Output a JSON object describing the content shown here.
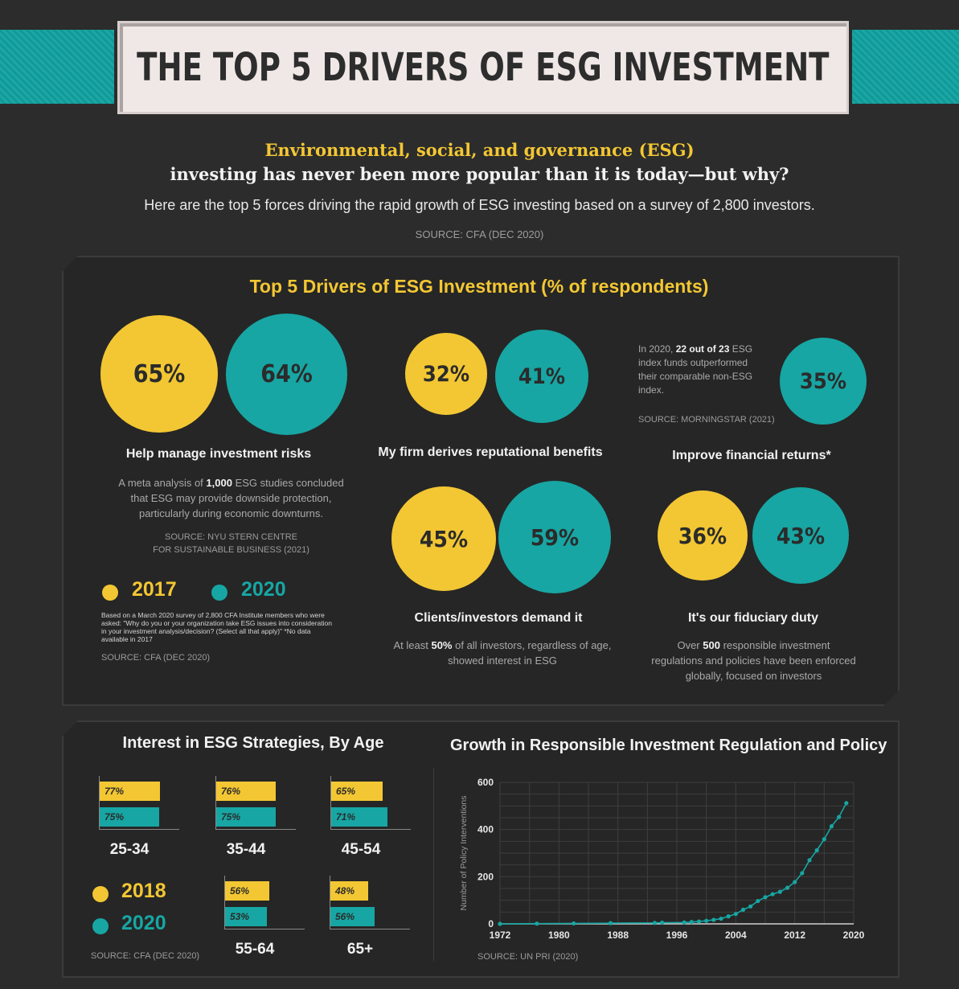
{
  "header": {
    "title": "THE TOP 5 DRIVERS OF ESG INVESTMENT",
    "intro_line1": "Environmental, social, and governance (ESG)",
    "intro_line2": "investing has never been more popular than it is today—but why?",
    "intro_line3": "Here are the top 5 forces driving the rapid growth of ESG investing based on a survey of 2,800 investors.",
    "source": "SOURCE: CFA (DEC 2020)"
  },
  "drivers": {
    "title": "Top 5 Drivers of ESG Investment (% of respondents)",
    "items": [
      {
        "label": "Help manage investment risks",
        "v2017": "65%",
        "v2020": "64%",
        "desc_pre": "A meta analysis of ",
        "desc_bold": "1,000",
        "desc_post": " ESG studies concluded that ESG may provide downside protection, particularly during economic downturns.",
        "source_l1": "SOURCE: NYU STERN CENTRE",
        "source_l2": "FOR SUSTAINABLE BUSINESS (2021)"
      },
      {
        "label": "My firm derives reputational benefits",
        "v2017": "32%",
        "v2020": "41%"
      },
      {
        "label": "Improve financial returns*",
        "v2017": "",
        "v2020": "35%",
        "note_pre": "In 2020, ",
        "note_bold": "22 out of 23",
        "note_post": " ESG index funds outperformed their comparable non-ESG index.",
        "source": "SOURCE: MORNINGSTAR (2021)"
      },
      {
        "label": "Clients/investors demand it",
        "v2017": "45%",
        "v2020": "59%",
        "desc_pre": "At least ",
        "desc_bold": "50%",
        "desc_post": " of all investors, regardless of age, showed interest in ESG"
      },
      {
        "label": "It's our fiduciary duty",
        "v2017": "36%",
        "v2020": "43%",
        "desc_pre": "Over ",
        "desc_bold": "500",
        "desc_post": " responsible investment regulations and policies have been enforced globally, focused on investors"
      }
    ],
    "legend": {
      "y1": "2017",
      "y2": "2020"
    },
    "footnote": "Based on a March 2020 survey of 2,800 CFA Institute members who were asked: \"Why do you or your organization take ESG issues into consideration in your investment analysis/decision? (Select all that apply)\" *No data available in 2017",
    "source": "SOURCE: CFA (DEC 2020)",
    "colors": {
      "2017": "#f3c733",
      "2020": "#17a6a3"
    }
  },
  "age_chart": {
    "title": "Interest in ESG Strategies, By Age",
    "legend": {
      "y1": "2018",
      "y2": "2020"
    },
    "source": "SOURCE: CFA (DEC 2020)",
    "groups": [
      {
        "age": "25-34",
        "v2018": 77,
        "v2020": 75
      },
      {
        "age": "35-44",
        "v2018": 76,
        "v2020": 75
      },
      {
        "age": "45-54",
        "v2018": 65,
        "v2020": 71
      },
      {
        "age": "55-64",
        "v2018": 56,
        "v2020": 53
      },
      {
        "age": "65+",
        "v2018": 48,
        "v2020": 56
      }
    ]
  },
  "chart_data": [
    {
      "type": "bar",
      "title": "Interest in ESG Strategies, By Age",
      "categories": [
        "25-34",
        "35-44",
        "45-54",
        "55-64",
        "65+"
      ],
      "series": [
        {
          "name": "2018",
          "values": [
            77,
            76,
            65,
            56,
            48
          ]
        },
        {
          "name": "2020",
          "values": [
            75,
            75,
            71,
            53,
            56
          ]
        }
      ],
      "unit": "%"
    },
    {
      "type": "line",
      "title": "Growth in Responsible Investment Regulation and Policy",
      "ylabel": "Number of Policy Interventions",
      "xlim": [
        1972,
        2020
      ],
      "ylim": [
        0,
        600
      ],
      "xticks": [
        "1972",
        "1980",
        "1988",
        "1996",
        "2004",
        "2012",
        "2020"
      ],
      "yticks": [
        "0",
        "200",
        "400",
        "600"
      ],
      "grid": true,
      "x": [
        1972,
        1977,
        1982,
        1987,
        1993,
        1994,
        1997,
        1998,
        1999,
        2000,
        2001,
        2002,
        2003,
        2004,
        2005,
        2006,
        2007,
        2008,
        2009,
        2010,
        2011,
        2012,
        2013,
        2014,
        2015,
        2016,
        2017,
        2018,
        2019
      ],
      "y": [
        0,
        1,
        2,
        3,
        4,
        5,
        6,
        8,
        10,
        13,
        17,
        22,
        32,
        42,
        60,
        74,
        97,
        113,
        126,
        136,
        153,
        177,
        215,
        270,
        312,
        359,
        414,
        453,
        512
      ],
      "source": "SOURCE: UN PRI (2020)",
      "line_color": "#17a6a3"
    }
  ]
}
